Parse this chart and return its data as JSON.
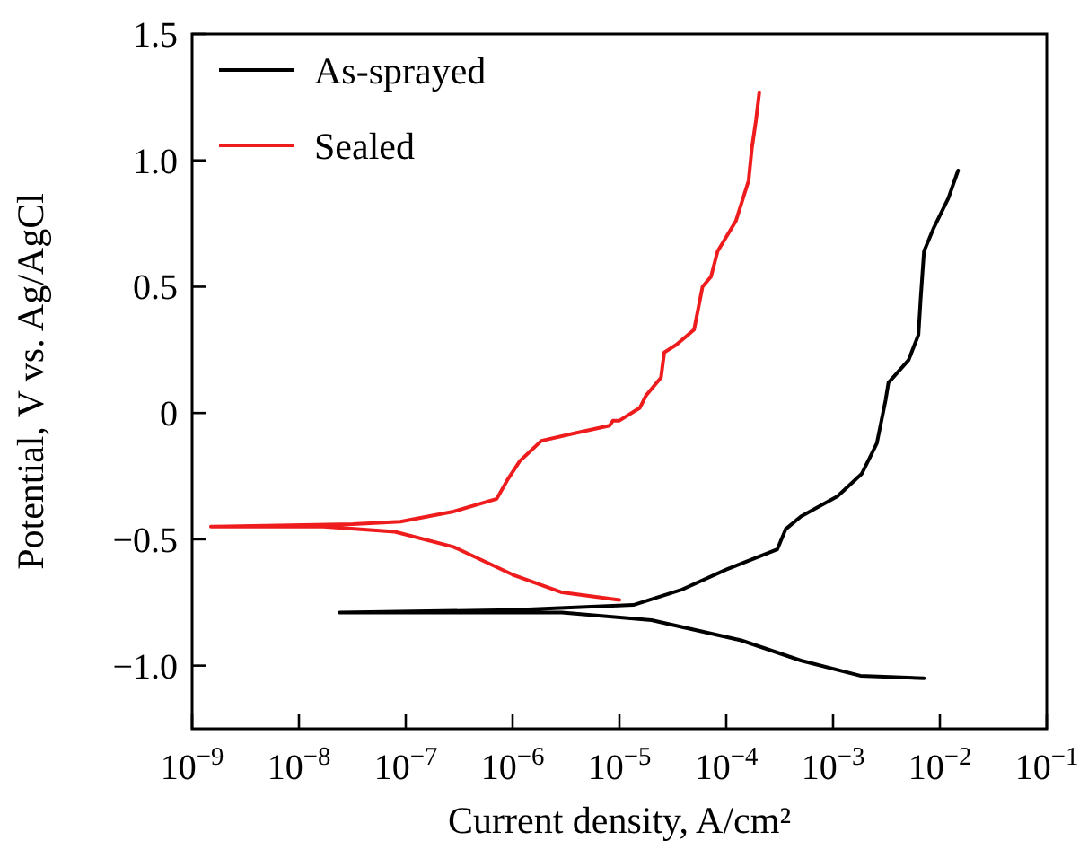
{
  "chart_data": {
    "type": "line",
    "xlabel": "Current density, A/cm²",
    "ylabel": "Potential, V vs. Ag/AgCl",
    "log": "x",
    "xlim": [
      1e-09,
      0.1
    ],
    "ylim": [
      -1.25,
      1.5
    ],
    "xticks": [
      {
        "value": 1e-09,
        "label": "10$^{−9}$"
      },
      {
        "value": 1e-08,
        "label": "10$^{−8}$"
      },
      {
        "value": 1e-07,
        "label": "10$^{−7}$"
      },
      {
        "value": 1e-06,
        "label": "10$^{−6}$"
      },
      {
        "value": 1e-05,
        "label": "10$^{−5}$"
      },
      {
        "value": 0.0001,
        "label": "10$^{−4}$"
      },
      {
        "value": 0.001,
        "label": "10$^{−3}$"
      },
      {
        "value": 0.01,
        "label": "10$^{−2}$"
      },
      {
        "value": 0.1,
        "label": "10$^{−1}$"
      }
    ],
    "yticks": [
      {
        "value": -1,
        "label": "−1.0"
      },
      {
        "value": -0.5,
        "label": "−0.5"
      },
      0,
      0.5,
      {
        "value": 1,
        "label": "1.0"
      },
      1.5
    ],
    "grid": false,
    "legend": "top left",
    "line_style": "solid",
    "series": [
      {
        "name": "As-sprayed",
        "color": "#000000",
        "x": [
          0.0071,
          0.0018,
          0.0005,
          0.000138,
          2e-05,
          2.9e-06,
          2.4e-08,
          1e-06,
          1.35e-05,
          3.8e-05,
          0.0001,
          0.0003,
          0.00036,
          0.0005,
          0.0011,
          0.00186,
          0.00257,
          0.0031,
          0.0033,
          0.0051,
          0.0063,
          0.0066,
          0.0071,
          0.0087,
          0.012,
          0.0148
        ],
        "values": [
          -1.05,
          -1.04,
          -0.98,
          -0.9,
          -0.82,
          -0.79,
          -0.79,
          -0.78,
          -0.76,
          -0.7,
          -0.62,
          -0.54,
          -0.46,
          -0.41,
          -0.33,
          -0.24,
          -0.12,
          0.05,
          0.12,
          0.21,
          0.31,
          0.45,
          0.64,
          0.73,
          0.85,
          0.96
        ]
      },
      {
        "name": "Sealed",
        "color": "#ee1c1c",
        "x": [
          1e-05,
          2.9e-06,
          1e-06,
          2.8e-07,
          7.9e-08,
          1.7e-08,
          1.5e-09,
          3.2e-08,
          8.9e-08,
          2.8e-07,
          7.1e-07,
          9.1e-07,
          1.17e-06,
          1.86e-06,
          3.8e-06,
          8.1e-06,
          8.7e-06,
          1e-05,
          1.55e-05,
          1.78e-05,
          2.45e-05,
          2.63e-05,
          3.4e-05,
          5e-05,
          6e-05,
          7.2e-05,
          8.3e-05,
          0.000123,
          0.000162,
          0.000174,
          0.00019,
          0.000204
        ],
        "values": [
          -0.74,
          -0.71,
          -0.64,
          -0.53,
          -0.47,
          -0.45,
          -0.45,
          -0.44,
          -0.43,
          -0.39,
          -0.34,
          -0.26,
          -0.19,
          -0.11,
          -0.08,
          -0.05,
          -0.03,
          -0.03,
          0.02,
          0.07,
          0.14,
          0.24,
          0.27,
          0.33,
          0.5,
          0.54,
          0.64,
          0.76,
          0.92,
          1.05,
          1.16,
          1.27
        ]
      }
    ]
  }
}
